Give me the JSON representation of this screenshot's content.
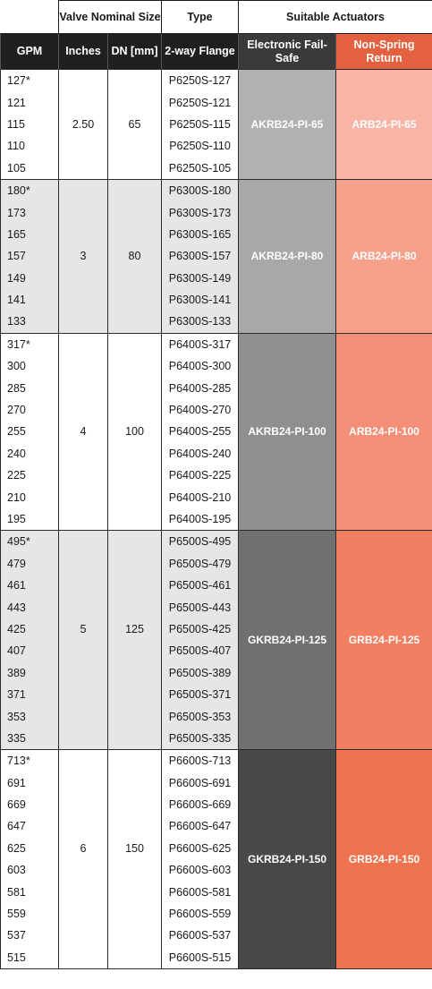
{
  "header": {
    "valve_nominal_size": "Valve Nominal Size",
    "type": "Type",
    "suitable_actuators": "Suitable Actuators",
    "gpm": "GPM",
    "inches": "Inches",
    "dn": "DN [mm]",
    "flange": "2-way Flange",
    "fail_safe": "Electronic Fail-Safe",
    "non_spring": "Non-Spring Return"
  },
  "colors": {
    "fs": [
      "#b1b1b3",
      "#a8a8aa",
      "#8f8f92",
      "#707073",
      "#48484b"
    ],
    "nsr": [
      "#f8b5a6",
      "#f6a18c",
      "#f48f77",
      "#f27f62",
      "#f0734f"
    ]
  },
  "groups": [
    {
      "inches": "2.50",
      "dn": "65",
      "fail_safe": "AKRB24-PI-65",
      "non_spring": "ARB24-PI-65",
      "rows": [
        [
          "127*",
          "P6250S-127"
        ],
        [
          "121",
          "P6250S-121"
        ],
        [
          "115",
          "P6250S-115"
        ],
        [
          "110",
          "P6250S-110"
        ],
        [
          "105",
          "P6250S-105"
        ]
      ]
    },
    {
      "inches": "3",
      "dn": "80",
      "fail_safe": "AKRB24-PI-80",
      "non_spring": "ARB24-PI-80",
      "rows": [
        [
          "180*",
          "P6300S-180"
        ],
        [
          "173",
          "P6300S-173"
        ],
        [
          "165",
          "P6300S-165"
        ],
        [
          "157",
          "P6300S-157"
        ],
        [
          "149",
          "P6300S-149"
        ],
        [
          "141",
          "P6300S-141"
        ],
        [
          "133",
          "P6300S-133"
        ]
      ]
    },
    {
      "inches": "4",
      "dn": "100",
      "fail_safe": "AKRB24-PI-100",
      "non_spring": "ARB24-PI-100",
      "rows": [
        [
          "317*",
          "P6400S-317"
        ],
        [
          "300",
          "P6400S-300"
        ],
        [
          "285",
          "P6400S-285"
        ],
        [
          "270",
          "P6400S-270"
        ],
        [
          "255",
          "P6400S-255"
        ],
        [
          "240",
          "P6400S-240"
        ],
        [
          "225",
          "P6400S-225"
        ],
        [
          "210",
          "P6400S-210"
        ],
        [
          "195",
          "P6400S-195"
        ]
      ]
    },
    {
      "inches": "5",
      "dn": "125",
      "fail_safe": "GKRB24-PI-125",
      "non_spring": "GRB24-PI-125",
      "rows": [
        [
          "495*",
          "P6500S-495"
        ],
        [
          "479",
          "P6500S-479"
        ],
        [
          "461",
          "P6500S-461"
        ],
        [
          "443",
          "P6500S-443"
        ],
        [
          "425",
          "P6500S-425"
        ],
        [
          "407",
          "P6500S-407"
        ],
        [
          "389",
          "P6500S-389"
        ],
        [
          "371",
          "P6500S-371"
        ],
        [
          "353",
          "P6500S-353"
        ],
        [
          "335",
          "P6500S-335"
        ]
      ]
    },
    {
      "inches": "6",
      "dn": "150",
      "fail_safe": "GKRB24-PI-150",
      "non_spring": "GRB24-PI-150",
      "rows": [
        [
          "713*",
          "P6600S-713"
        ],
        [
          "691",
          "P6600S-691"
        ],
        [
          "669",
          "P6600S-669"
        ],
        [
          "647",
          "P6600S-647"
        ],
        [
          "625",
          "P6600S-625"
        ],
        [
          "603",
          "P6600S-603"
        ],
        [
          "581",
          "P6600S-581"
        ],
        [
          "559",
          "P6600S-559"
        ],
        [
          "537",
          "P6600S-537"
        ],
        [
          "515",
          "P6600S-515"
        ]
      ]
    }
  ]
}
